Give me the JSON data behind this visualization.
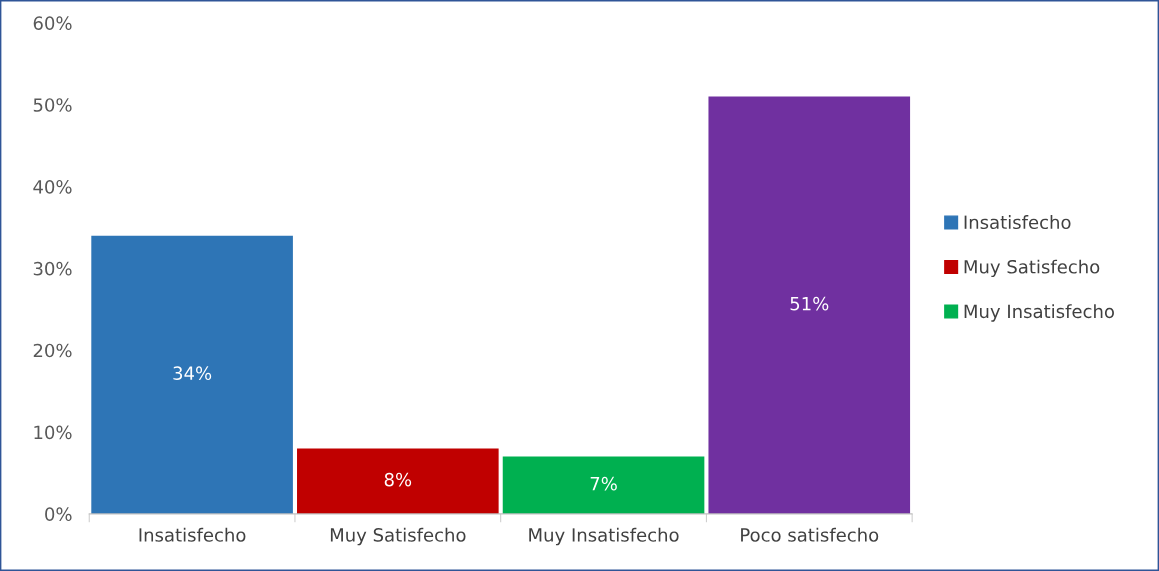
{
  "chart_data": {
    "type": "bar",
    "categories": [
      "Insatisfecho",
      "Muy Satisfecho",
      "Muy Insatisfecho",
      "Poco satisfecho"
    ],
    "series": [
      {
        "name": "Insatisfecho",
        "color": "#2e75b6",
        "values": [
          34,
          null,
          null,
          null
        ]
      },
      {
        "name": "Muy Satisfecho",
        "color": "#c00000",
        "values": [
          null,
          8,
          null,
          null
        ]
      },
      {
        "name": "Muy Insatisfecho",
        "color": "#00b050",
        "values": [
          null,
          null,
          7,
          null
        ]
      },
      {
        "color": "#7030a0",
        "values": [
          null,
          null,
          null,
          51
        ]
      }
    ],
    "ylim": [
      0,
      60
    ],
    "yticks": [
      {
        "value": 0,
        "label": "0%"
      },
      {
        "value": 10,
        "label": "10%"
      },
      {
        "value": 20,
        "label": "20%"
      },
      {
        "value": 30,
        "label": "30%"
      },
      {
        "value": 40,
        "label": "40%"
      },
      {
        "value": 50,
        "label": "50%"
      },
      {
        "value": 60,
        "label": "60%"
      }
    ],
    "value_labels": [
      "34%",
      "8%",
      "7%",
      "51%"
    ],
    "grid": false,
    "legend": "right"
  }
}
